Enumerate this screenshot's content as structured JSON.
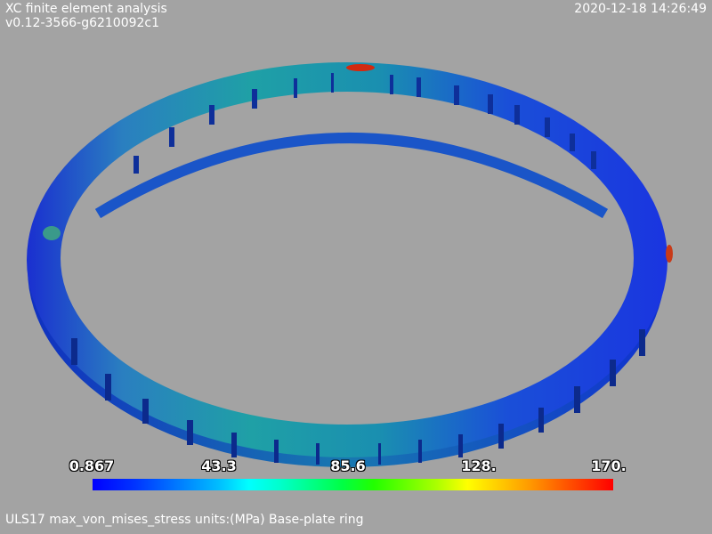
{
  "header": {
    "title": "XC finite element analysis",
    "version": "v0.12-3566-g6210092c1",
    "timestamp": "2020-12-18 14:26:49"
  },
  "scalebar": {
    "labels": [
      "0.867",
      "43.3",
      "85.6",
      "128.",
      "170."
    ]
  },
  "caption": "ULS17 max_von_mises_stress units:(MPa) Base-plate ring",
  "colors": {
    "background": "#a3a3a3",
    "ring_low": "#0022cc",
    "ring_mid": "#1fa3a8",
    "hotspot": "#d22a10"
  }
}
